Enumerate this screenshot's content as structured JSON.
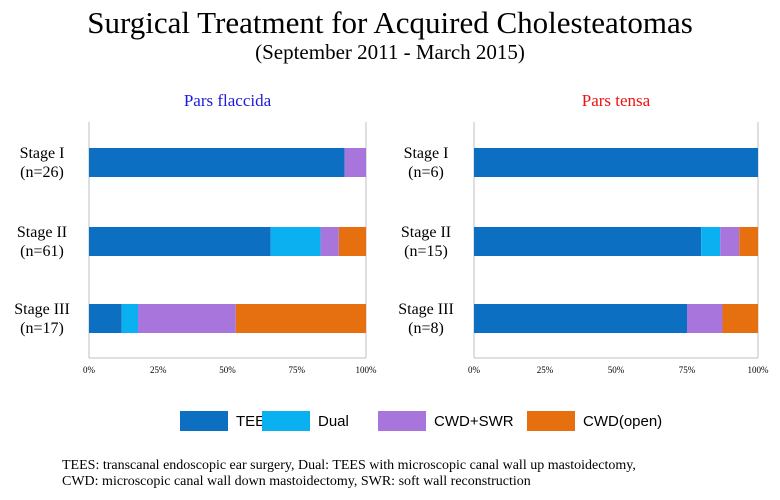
{
  "title": "Surgical Treatment for Acquired Cholesteatomas",
  "subtitle": "(September 2011 - March 2015)",
  "colors": {
    "TEES": "#0c6fc2",
    "Dual": "#0ab0ef",
    "CWD+SWR": "#a875dc",
    "CWD(open)": "#e6700f",
    "pars_flaccida_title": "#1a1adc",
    "pars_tensa_title": "#ee1111"
  },
  "legend": [
    {
      "name": "TEES",
      "label": "TEES"
    },
    {
      "name": "Dual",
      "label": "Dual"
    },
    {
      "name": "CWD+SWR",
      "label": "CWD+SWR"
    },
    {
      "name": "CWD(open)",
      "label": "CWD(open)"
    }
  ],
  "chart_data": [
    {
      "type": "bar",
      "orientation": "horizontal",
      "stacked": true,
      "title": "Pars flaccida",
      "categories": [
        {
          "stage": "Stage I",
          "n": "(n=26)"
        },
        {
          "stage": "Stage II",
          "n": "(n=61)"
        },
        {
          "stage": "Stage III",
          "n": "(n=17)"
        }
      ],
      "series": [
        {
          "name": "TEES",
          "values": [
            92.3,
            65.6,
            11.8
          ]
        },
        {
          "name": "Dual",
          "values": [
            0,
            18.0,
            5.9
          ]
        },
        {
          "name": "CWD+SWR",
          "values": [
            7.7,
            6.6,
            35.3
          ]
        },
        {
          "name": "CWD(open)",
          "values": [
            0,
            9.8,
            47.0
          ]
        }
      ],
      "xlim": [
        0,
        100
      ],
      "xticks": [
        "0%",
        "25%",
        "50%",
        "75%",
        "100%"
      ]
    },
    {
      "type": "bar",
      "orientation": "horizontal",
      "stacked": true,
      "title": "Pars tensa",
      "categories": [
        {
          "stage": "Stage I",
          "n": "(n=6)"
        },
        {
          "stage": "Stage II",
          "n": "(n=15)"
        },
        {
          "stage": "Stage III",
          "n": "(n=8)"
        }
      ],
      "series": [
        {
          "name": "TEES",
          "values": [
            100,
            80.0,
            75.0
          ]
        },
        {
          "name": "Dual",
          "values": [
            0,
            6.7,
            0
          ]
        },
        {
          "name": "CWD+SWR",
          "values": [
            0,
            6.7,
            12.5
          ]
        },
        {
          "name": "CWD(open)",
          "values": [
            0,
            6.6,
            12.5
          ]
        }
      ],
      "xlim": [
        0,
        100
      ],
      "xticks": [
        "0%",
        "25%",
        "50%",
        "75%",
        "100%"
      ]
    }
  ],
  "footnote": {
    "line1": "TEES: transcanal endoscopic ear surgery, Dual: TEES with microscopic canal wall up mastoidectomy,",
    "line2": "CWD: microscopic canal wall down mastoidectomy, SWR: soft wall reconstruction"
  }
}
